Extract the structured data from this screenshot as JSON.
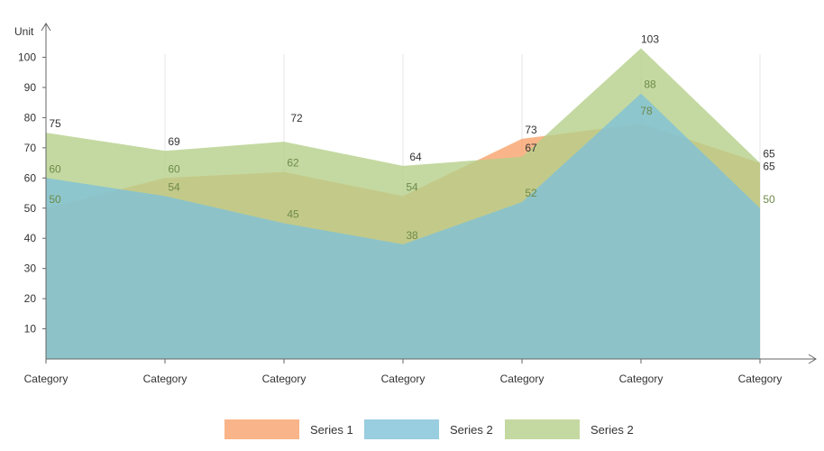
{
  "chart_data": {
    "type": "area",
    "ylabel": "Unit",
    "categories": [
      "Category",
      "Category",
      "Category",
      "Category",
      "Category",
      "Category",
      "Category"
    ],
    "ylim": [
      0,
      110
    ],
    "yticks": [
      10,
      20,
      30,
      40,
      50,
      60,
      70,
      80,
      90,
      100
    ],
    "grid": false,
    "legend_position": "bottom",
    "series": [
      {
        "name": "Series 1",
        "color": "#f7a36c",
        "values": [
          50,
          60,
          62,
          54,
          73,
          78,
          65
        ]
      },
      {
        "name": "Series 2",
        "color": "#7fc0d8",
        "values": [
          60,
          54,
          45,
          38,
          52,
          88,
          50
        ]
      },
      {
        "name": "Series 2",
        "color": "#b5d08a",
        "values": [
          75,
          69,
          72,
          64,
          67,
          103,
          65
        ]
      }
    ]
  }
}
